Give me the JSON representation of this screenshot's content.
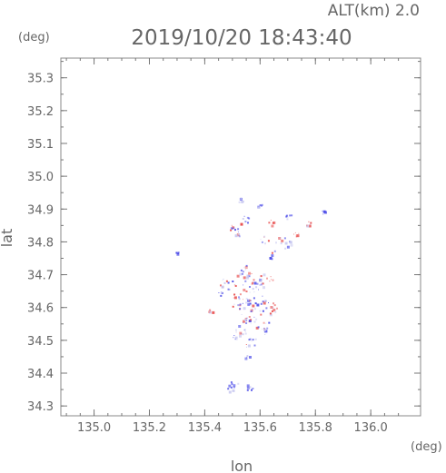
{
  "header": {
    "altitude_label": "ALT(km) 2.0",
    "timestamp": "2019/10/20 18:43:40"
  },
  "chart_data": {
    "type": "heatmap",
    "xlabel": "lon",
    "ylabel": "lat",
    "x_unit": "(deg)",
    "y_unit": "(deg)",
    "xlim": [
      134.88,
      136.18
    ],
    "ylim": [
      34.27,
      35.36
    ],
    "x_ticks": [
      135.0,
      135.2,
      135.4,
      135.6,
      135.8,
      136.0
    ],
    "x_tick_labels": [
      "135.0",
      "135.2",
      "135.4",
      "135.6",
      "135.8",
      "136.0"
    ],
    "y_ticks": [
      34.3,
      34.4,
      34.5,
      34.6,
      34.7,
      34.8,
      34.9,
      35.0,
      35.1,
      35.2,
      35.3
    ],
    "y_tick_labels": [
      "34.3",
      "34.4",
      "34.5",
      "34.6",
      "34.7",
      "34.8",
      "34.9",
      "35.0",
      "35.1",
      "35.2",
      "35.3"
    ],
    "grid": false,
    "colors": {
      "positive": "#e84a4a",
      "negative": "#4a4ae8",
      "neutral": "#c8c8f0"
    },
    "echo_regions": [
      {
        "lon": 135.53,
        "lat": 34.93,
        "sign": "neg",
        "r": 0.012
      },
      {
        "lon": 135.6,
        "lat": 34.91,
        "sign": "neg",
        "r": 0.01
      },
      {
        "lon": 135.52,
        "lat": 34.84,
        "sign": "mix",
        "r": 0.03
      },
      {
        "lon": 135.55,
        "lat": 34.87,
        "sign": "neg",
        "r": 0.015
      },
      {
        "lon": 135.64,
        "lat": 34.86,
        "sign": "pos",
        "r": 0.012
      },
      {
        "lon": 135.7,
        "lat": 34.88,
        "sign": "neg",
        "r": 0.012
      },
      {
        "lon": 135.77,
        "lat": 34.86,
        "sign": "pos",
        "r": 0.012
      },
      {
        "lon": 135.83,
        "lat": 34.89,
        "sign": "neg",
        "r": 0.01
      },
      {
        "lon": 135.68,
        "lat": 34.8,
        "sign": "mix",
        "r": 0.03
      },
      {
        "lon": 135.73,
        "lat": 34.82,
        "sign": "pos",
        "r": 0.015
      },
      {
        "lon": 135.61,
        "lat": 34.81,
        "sign": "mix",
        "r": 0.02
      },
      {
        "lon": 135.65,
        "lat": 34.76,
        "sign": "mix",
        "r": 0.02
      },
      {
        "lon": 135.3,
        "lat": 34.77,
        "sign": "neg",
        "r": 0.006
      },
      {
        "lon": 135.54,
        "lat": 34.71,
        "sign": "mix",
        "r": 0.03
      },
      {
        "lon": 135.48,
        "lat": 34.67,
        "sign": "mix",
        "r": 0.03
      },
      {
        "lon": 135.57,
        "lat": 34.67,
        "sign": "mix",
        "r": 0.04
      },
      {
        "lon": 135.62,
        "lat": 34.69,
        "sign": "pos",
        "r": 0.025
      },
      {
        "lon": 135.45,
        "lat": 34.64,
        "sign": "neg",
        "r": 0.02
      },
      {
        "lon": 135.52,
        "lat": 34.62,
        "sign": "mix",
        "r": 0.035
      },
      {
        "lon": 135.59,
        "lat": 34.61,
        "sign": "mix",
        "r": 0.04
      },
      {
        "lon": 135.64,
        "lat": 34.6,
        "sign": "pos",
        "r": 0.025
      },
      {
        "lon": 135.42,
        "lat": 34.59,
        "sign": "pos",
        "r": 0.008
      },
      {
        "lon": 135.55,
        "lat": 34.56,
        "sign": "mix",
        "r": 0.035
      },
      {
        "lon": 135.61,
        "lat": 34.54,
        "sign": "mix",
        "r": 0.03
      },
      {
        "lon": 135.52,
        "lat": 34.52,
        "sign": "mix",
        "r": 0.03
      },
      {
        "lon": 135.57,
        "lat": 34.49,
        "sign": "mix",
        "r": 0.025
      },
      {
        "lon": 135.55,
        "lat": 34.45,
        "sign": "neg",
        "r": 0.012
      },
      {
        "lon": 135.5,
        "lat": 34.36,
        "sign": "neg",
        "r": 0.025
      },
      {
        "lon": 135.56,
        "lat": 34.36,
        "sign": "neg",
        "r": 0.015
      }
    ]
  }
}
